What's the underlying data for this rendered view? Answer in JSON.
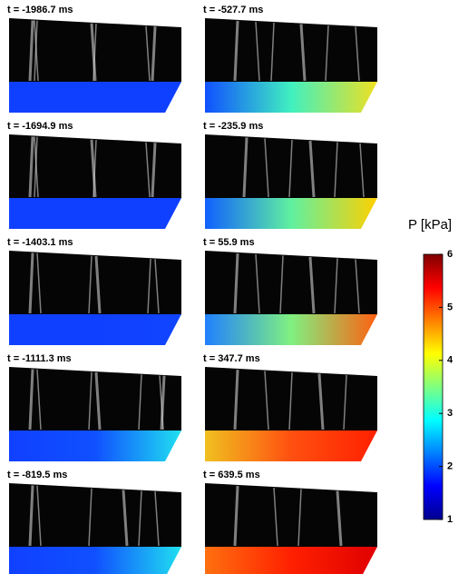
{
  "panels": [
    {
      "label": "t = -1986.7 ms"
    },
    {
      "label": "t = -1694.9 ms"
    },
    {
      "label": "t = -1403.1 ms"
    },
    {
      "label": "t = -1111.3 ms"
    },
    {
      "label": "t = -819.5 ms"
    },
    {
      "label": "t = -527.7 ms"
    },
    {
      "label": "t = -235.9 ms"
    },
    {
      "label": "t = 55.9 ms"
    },
    {
      "label": "t = 347.7 ms"
    },
    {
      "label": "t = 639.5 ms"
    }
  ],
  "colorbar": {
    "label": "P [kPa]",
    "lim": [
      1,
      6
    ],
    "ticks": [
      1,
      2,
      3,
      4,
      5,
      6
    ]
  }
}
